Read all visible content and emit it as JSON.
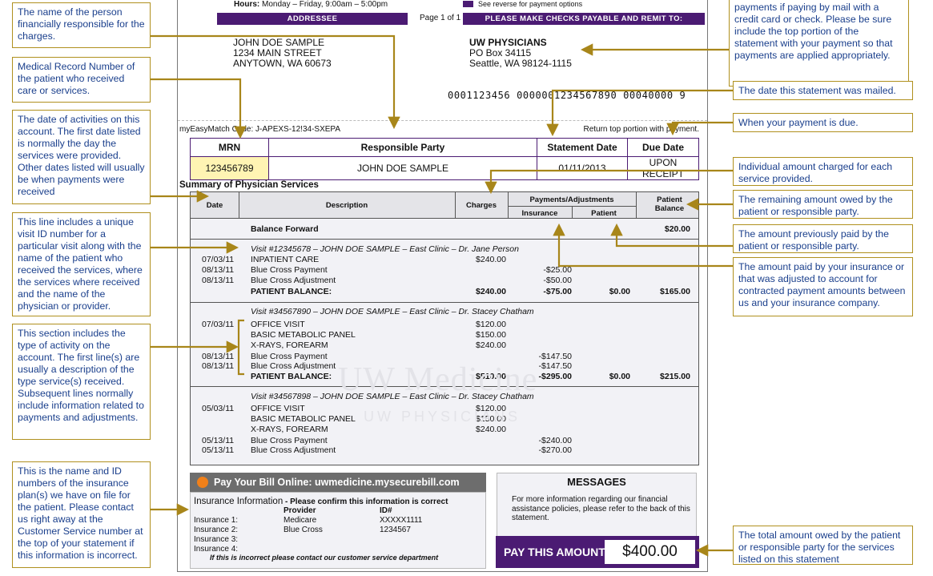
{
  "statement": {
    "hours_label": "Hours:",
    "hours_value": "Monday – Friday, 9:00am – 5:00pm",
    "reverse_note": "See reverse for payment options",
    "addressee_label": "ADDRESSEE",
    "page": "Page 1 of 1",
    "remit_label": "PLEASE MAKE CHECKS PAYABLE AND REMIT TO:",
    "addressee": [
      "JOHN DOE SAMPLE",
      "1234 MAIN STREET",
      "ANYTOWN, WA 60673"
    ],
    "remit": {
      "name": "UW PHYSICIANS",
      "line1": "PO Box 34115",
      "line2": "Seattle, WA 98124-1115"
    },
    "scanline": "0001123456 0000001234567890 00040000 9",
    "match_code": "myEasyMatch Code: J-APEXS-12!34-SXEPA",
    "return_note": "Return top portion with payment.",
    "header_table": {
      "headers": [
        "MRN",
        "Responsible Party",
        "Statement Date",
        "Due Date"
      ],
      "values": [
        "123456789",
        "JOHN DOE SAMPLE",
        "01/11/2013",
        "UPON RECEIPT"
      ]
    },
    "summary_title": "Summary of Physician Services",
    "columns": {
      "date": "Date",
      "description": "Description",
      "charges": "Charges",
      "payments": "Payments/Adjustments",
      "insurance": "Insurance",
      "patient": "Patient",
      "balance": "Patient Balance"
    },
    "balance_forward": {
      "label": "Balance Forward",
      "amount": "$20.00"
    },
    "visits": [
      {
        "title": "Visit #12345678 – JOHN DOE SAMPLE – East Clinic – Dr. Jane Person",
        "lines": [
          {
            "date": "07/03/11",
            "desc": "INPATIENT CARE",
            "charge": "$240.00",
            "ins": ""
          },
          {
            "date": "08/13/11",
            "desc": "Blue Cross Payment",
            "charge": "",
            "ins": "-$25.00"
          },
          {
            "date": "08/13/11",
            "desc": "Blue Cross Adjustment",
            "charge": "",
            "ins": "-$50.00"
          }
        ],
        "total": {
          "label": "PATIENT BALANCE:",
          "charge": "$240.00",
          "ins": "-$75.00",
          "patient": "$0.00",
          "balance": "$165.00"
        }
      },
      {
        "title": "Visit #34567890 – JOHN DOE SAMPLE – East Clinic – Dr. Stacey Chatham",
        "lines": [
          {
            "date": "07/03/11",
            "desc": "OFFICE VISIT",
            "charge": "$120.00",
            "ins": ""
          },
          {
            "date": "",
            "desc": "BASIC METABOLIC PANEL",
            "charge": "$150.00",
            "ins": ""
          },
          {
            "date": "",
            "desc": "X-RAYS, FOREARM",
            "charge": "$240.00",
            "ins": ""
          },
          {
            "date": "08/13/11",
            "desc": "Blue Cross Payment",
            "charge": "",
            "ins": "-$147.50"
          },
          {
            "date": "08/13/11",
            "desc": "Blue Cross Adjustment",
            "charge": "",
            "ins": "-$147.50"
          }
        ],
        "total": {
          "label": "PATIENT BALANCE:",
          "charge": "$510.00",
          "ins": "-$295.00",
          "patient": "$0.00",
          "balance": "$215.00"
        }
      },
      {
        "title": "Visit #34567898 – JOHN DOE SAMPLE –  East Clinic – Dr. Stacey Chatham",
        "lines": [
          {
            "date": "05/03/11",
            "desc": "OFFICE VISIT",
            "charge": "$120.00",
            "ins": ""
          },
          {
            "date": "",
            "desc": "BASIC METABOLIC PANEL",
            "charge": "$150.00",
            "ins": ""
          },
          {
            "date": "",
            "desc": "X-RAYS, FOREARM",
            "charge": "$240.00",
            "ins": ""
          },
          {
            "date": "05/13/11",
            "desc": "Blue Cross Payment",
            "charge": "",
            "ins": "-$240.00"
          },
          {
            "date": "05/13/11",
            "desc": "Blue Cross Adjustment",
            "charge": "",
            "ins": "-$270.00"
          }
        ]
      }
    ],
    "watermark": "UW Medicine",
    "watermark_sub": "UW PHYSICIANS",
    "pay_online": "Pay Your Bill Online: uwmedicine.mysecurebill.com",
    "insurance": {
      "title": "Insurance Information",
      "subtitle": " - Please confirm this information is correct",
      "provider_header": "Provider",
      "id_header": "ID#",
      "rows": [
        {
          "label": "Insurance 1:",
          "provider": "Medicare",
          "id": "XXXXX1111"
        },
        {
          "label": "Insurance 2:",
          "provider": "Blue Cross",
          "id": "1234567"
        },
        {
          "label": "Insurance 3:",
          "provider": "",
          "id": ""
        },
        {
          "label": "Insurance 4:",
          "provider": "",
          "id": ""
        }
      ],
      "footnote": "If this is incorrect please contact our customer service department"
    },
    "messages": {
      "title": "MESSAGES",
      "text": "For more information regarding our financial assistance policies, please refer to the back of this statement."
    },
    "pay_label": "PAY THIS AMOUNT",
    "pay_amount": "$400.00"
  },
  "callouts": {
    "responsible": "The name of the person financially responsible for the charges.",
    "mrn": "Medical Record Number of the patient who received care or services.",
    "dates": "The date of activities on this account. The first date listed is normally the day the services were provided. Other dates listed will usually be when payments were received",
    "visit_line": "This line includes a unique visit ID number for a particular visit along with the name of the patient who received the services, where the services where received and the name of the physician  or provider.",
    "activity": "This section includes the type of activity on the account. The first line(s) are usually a description of the type service(s) received. Subsequent lines normally include information related to payments and adjustments.",
    "insurance": "This is the name and ID numbers of the insurance plan(s) we have on file for the patient. Please contact us right away at the Customer Service number at the top of your statement if this information is incorrect.",
    "remit": "payments if paying by mail with a credit card or check. Please be sure include the top portion of the statement with your payment so that payments are applied appropriately.",
    "mailed": "The date this statement was mailed.",
    "due": "When your payment is due.",
    "charge": "Individual amount charged for each service provided.",
    "remaining": "The remaining amount owed by the patient or responsible party.",
    "paid_patient": "The amount previously paid by the patient or responsible party.",
    "paid_insurance": "The amount paid by your insurance or that was adjusted to account for contracted payment amounts between us and your insurance company.",
    "total": "The total amount owed by the patient or responsible party for the services listed on this statement"
  }
}
